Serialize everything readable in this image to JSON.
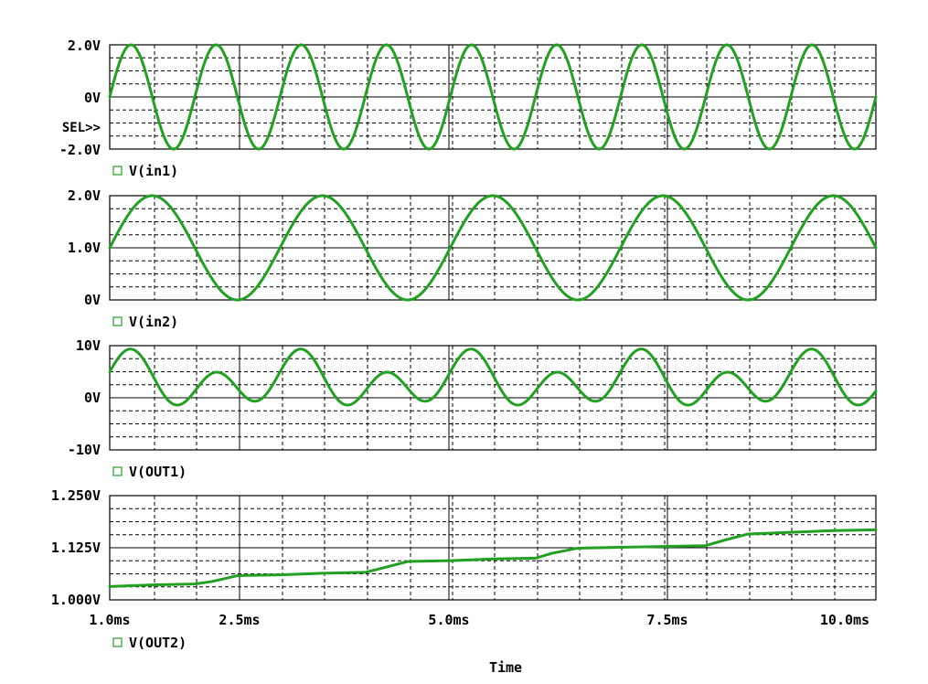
{
  "x_axis_label": "Time",
  "x_tick_labels": [
    "1.0ms",
    "2.5ms",
    "5.0ms",
    "7.5ms",
    "10.0ms"
  ],
  "selection_marker": "SEL>>",
  "colors": {
    "trace": "#22a022",
    "frame": "#000000",
    "background": "#ffffff"
  },
  "chart_data": [
    {
      "type": "line",
      "legend": "V(in1)",
      "y_tick_labels": [
        "2.0V",
        "0V",
        "-2.0V"
      ],
      "ylim": [
        -2.0,
        2.0
      ],
      "xlim_ms": [
        1.0,
        10.0
      ],
      "grid": true,
      "series": [
        {
          "name": "V(in1)",
          "function": "2*sin(2*pi*1000*t)",
          "amplitude_V": 2.0,
          "offset_V": 0.0,
          "frequency_Hz": 1000
        }
      ]
    },
    {
      "type": "line",
      "legend": "V(in2)",
      "y_tick_labels": [
        "2.0V",
        "1.0V",
        "0V"
      ],
      "ylim": [
        0.0,
        2.0
      ],
      "xlim_ms": [
        1.0,
        10.0
      ],
      "grid": true,
      "series": [
        {
          "name": "V(in2)",
          "function": "1-sin(2*pi*500*t)",
          "amplitude_V": 1.0,
          "offset_V": 1.0,
          "frequency_Hz": 500
        }
      ]
    },
    {
      "type": "line",
      "legend": "V(OUT1)",
      "y_tick_labels": [
        "10V",
        "0V",
        "-10V"
      ],
      "ylim": [
        -10.0,
        10.0
      ],
      "xlim_ms": [
        1.0,
        10.0
      ],
      "grid": true,
      "series": [
        {
          "name": "V(OUT1)",
          "peak_max_V": 9.5,
          "peak_mid_V": 5.0,
          "trough_min_V": -3.0,
          "trough_mid_V": 1.0,
          "period_ms": 2.0
        }
      ]
    },
    {
      "type": "line",
      "legend": "V(OUT2)",
      "y_tick_labels": [
        "1.250V",
        "1.125V",
        "1.000V"
      ],
      "ylim": [
        1.0,
        1.25
      ],
      "xlim_ms": [
        1.0,
        10.0
      ],
      "grid": true,
      "series": [
        {
          "name": "V(OUT2)",
          "x": [
            1.0,
            1.5,
            2.0,
            2.2,
            2.5,
            3.0,
            3.5,
            4.0,
            4.2,
            4.5,
            5.0,
            5.5,
            6.0,
            6.2,
            6.5,
            7.0,
            7.5,
            8.0,
            8.2,
            8.5,
            9.0,
            9.5,
            10.0
          ],
          "y": [
            1.032,
            1.036,
            1.038,
            1.044,
            1.058,
            1.06,
            1.064,
            1.066,
            1.076,
            1.092,
            1.094,
            1.098,
            1.1,
            1.112,
            1.124,
            1.126,
            1.128,
            1.13,
            1.142,
            1.158,
            1.162,
            1.166,
            1.168
          ]
        }
      ]
    }
  ]
}
